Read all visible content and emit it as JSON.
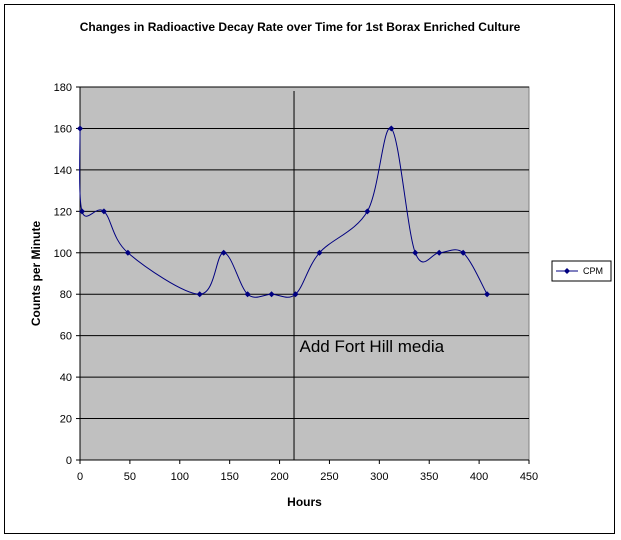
{
  "chart_data": {
    "type": "line",
    "title": "Changes in Radioactive Decay Rate over Time for 1st Borax Enriched Culture",
    "xlabel": "Hours",
    "ylabel": "Counts per Minute",
    "xlim": [
      0,
      450
    ],
    "ylim": [
      0,
      180
    ],
    "x_ticks": [
      0,
      50,
      100,
      150,
      200,
      250,
      300,
      350,
      400,
      450
    ],
    "y_ticks": [
      0,
      20,
      40,
      60,
      80,
      100,
      120,
      140,
      160,
      180
    ],
    "grid": "horizontal",
    "background": "#c0c0c0",
    "line_color": "#000080",
    "legend_position": "right",
    "series": [
      {
        "name": "CPM",
        "x": [
          0,
          2,
          24,
          48,
          120,
          144,
          168,
          192,
          216,
          240,
          288,
          312,
          336,
          360,
          384,
          408
        ],
        "y": [
          160,
          120,
          120,
          100,
          80,
          100,
          80,
          80,
          80,
          100,
          120,
          160,
          100,
          100,
          100,
          80
        ]
      }
    ],
    "annotations": [
      {
        "text": "Add Fort Hill media",
        "x": 220,
        "y": 52
      }
    ],
    "vertical_marker_x": 216
  }
}
